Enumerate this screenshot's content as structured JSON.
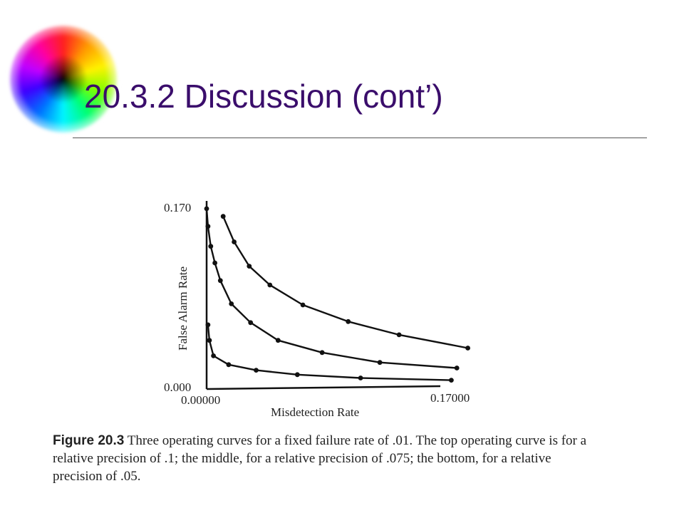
{
  "slide": {
    "title": "20.3.2 Discussion (cont’)"
  },
  "chart_data": {
    "type": "line",
    "xlabel": "Misdetection Rate",
    "ylabel": "False Alarm Rate",
    "xlim": [
      0.0,
      0.17
    ],
    "ylim": [
      0.0,
      0.17
    ],
    "x_tick_labels": [
      "0.00000",
      "0.17000"
    ],
    "y_tick_labels": [
      "0.000",
      "0.170"
    ],
    "grid": false,
    "series": [
      {
        "values_x": [
          0.012,
          0.02,
          0.031,
          0.046,
          0.07,
          0.103,
          0.14,
          0.19
        ],
        "values_y": [
          0.156,
          0.133,
          0.111,
          0.094,
          0.076,
          0.061,
          0.049,
          0.037
        ]
      },
      {
        "values_x": [
          0.0,
          0.001,
          0.003,
          0.006,
          0.01,
          0.018,
          0.032,
          0.052,
          0.084,
          0.126,
          0.182
        ],
        "values_y": [
          0.163,
          0.147,
          0.129,
          0.114,
          0.098,
          0.077,
          0.06,
          0.044,
          0.033,
          0.024,
          0.019
        ]
      },
      {
        "values_x": [
          0.001,
          0.002,
          0.005,
          0.016,
          0.036,
          0.066,
          0.112,
          0.178
        ],
        "values_y": [
          0.058,
          0.044,
          0.03,
          0.022,
          0.017,
          0.013,
          0.01,
          0.008
        ]
      }
    ]
  },
  "caption": {
    "figure_label": "Figure 20.3",
    "text": " Three operating curves for a fixed failure rate of .01. The top operating curve is for a relative precision of .1; the middle, for a relative precision of .075; the bottom, for a relative precision of .05."
  }
}
